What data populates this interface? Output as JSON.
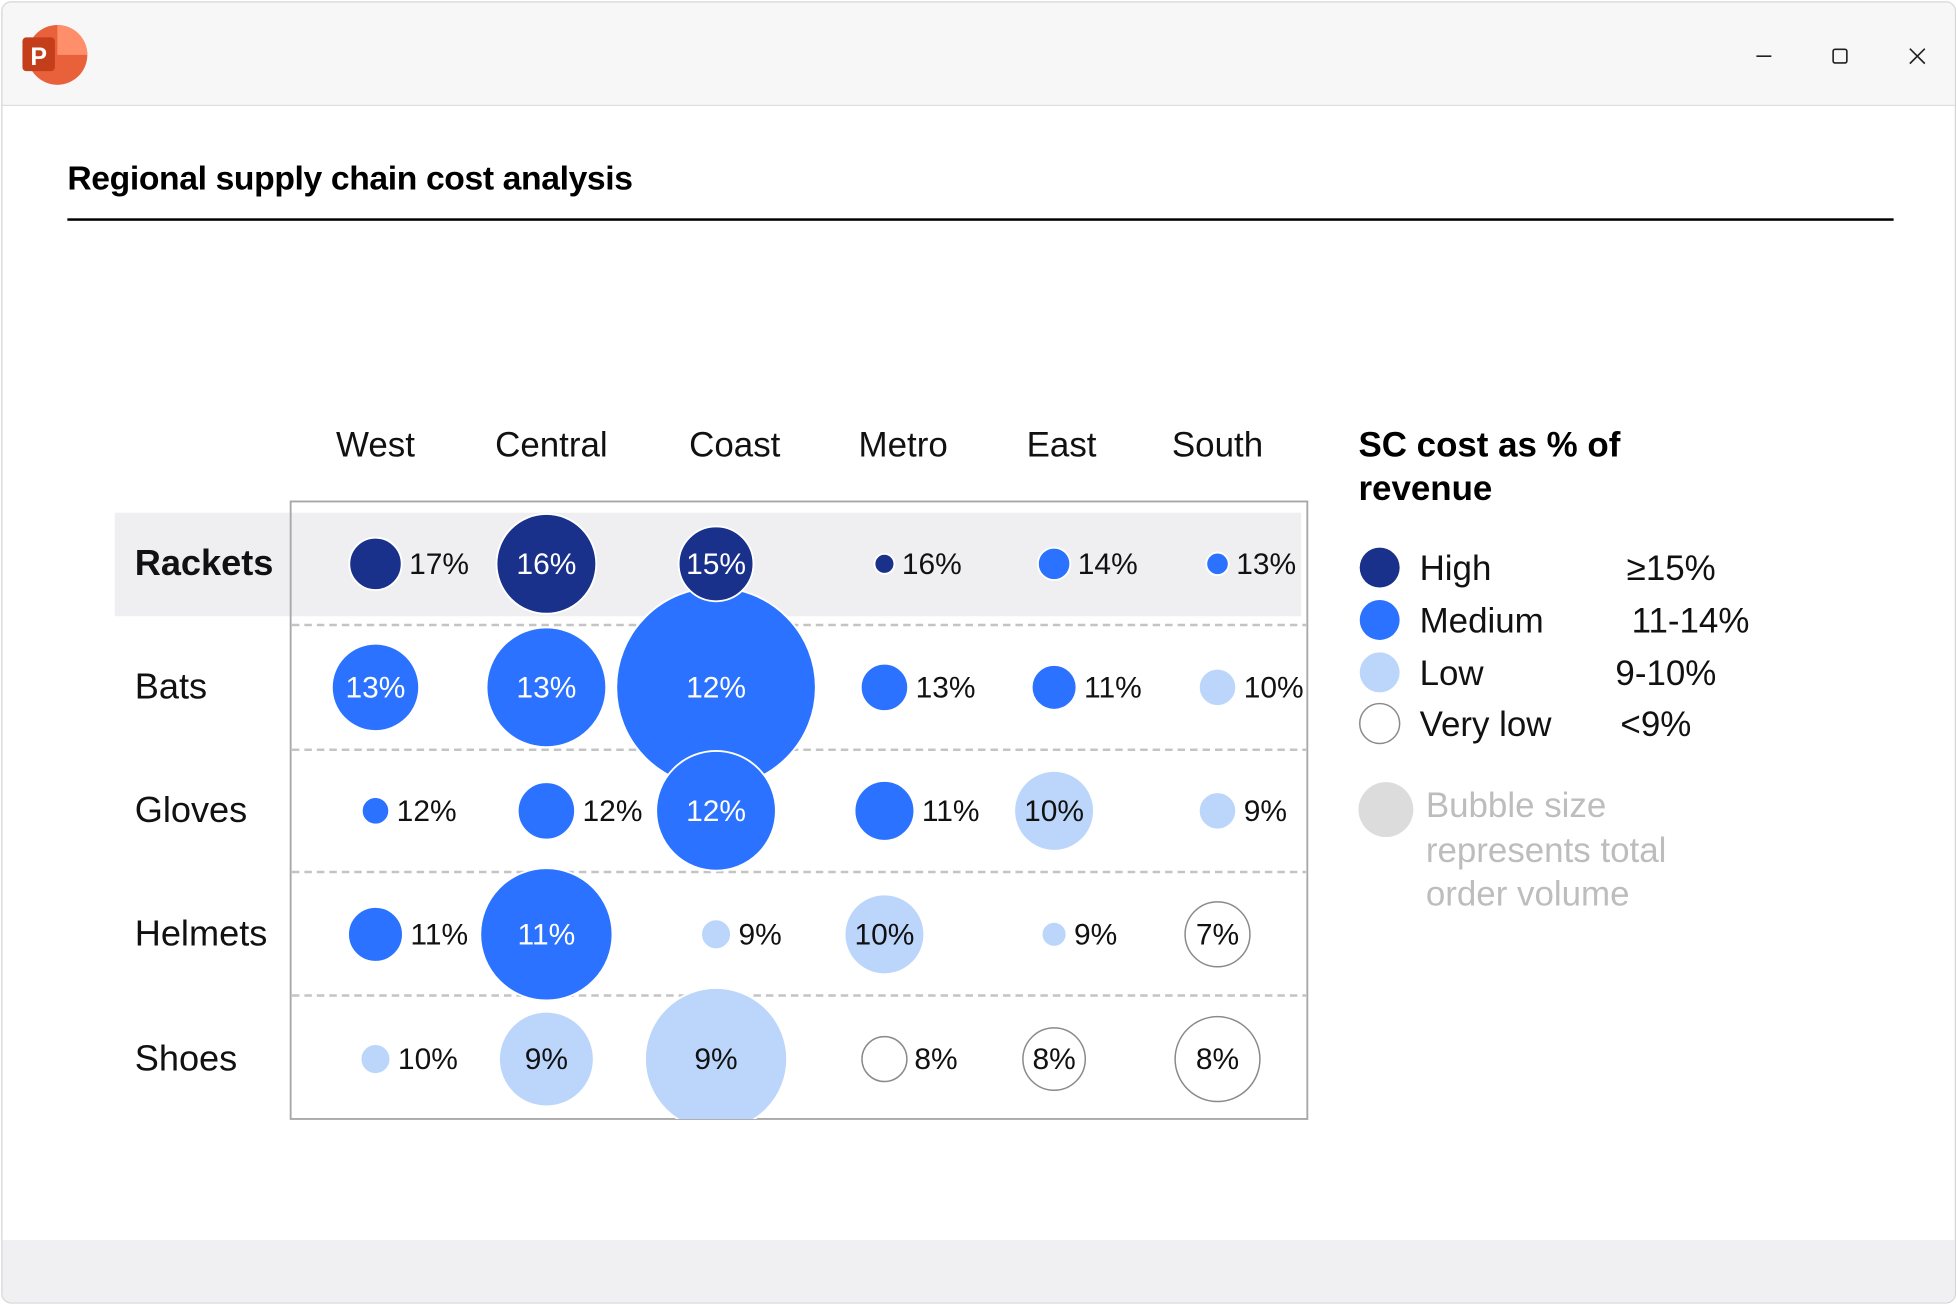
{
  "window": {
    "app_icon": "powerpoint-icon",
    "controls": [
      "minimize-icon",
      "maximize-icon",
      "close-icon"
    ]
  },
  "slide": {
    "title": "Regional supply chain cost analysis"
  },
  "colors": {
    "High": "#1a318c",
    "Medium": "#2a72ff",
    "Low": "#bcd6fb",
    "Very low": "#ffffff",
    "note": "#dcdcdc"
  },
  "chart_data": {
    "type": "bubble-matrix",
    "title": "Regional supply chain cost analysis",
    "columns": [
      "West",
      "Central",
      "Coast",
      "Metro",
      "East",
      "South"
    ],
    "rows": [
      "Rackets",
      "Bats",
      "Gloves",
      "Helmets",
      "Shoes"
    ],
    "highlighted_row": "Rackets",
    "size_meaning": "Bubble size represents total order volume",
    "cells": [
      [
        {
          "v": "17%",
          "cat": "High",
          "size": 21
        },
        {
          "v": "16%",
          "cat": "High",
          "size": 40
        },
        {
          "v": "15%",
          "cat": "High",
          "size": 30
        },
        {
          "v": "16%",
          "cat": "High",
          "size": 8
        },
        {
          "v": "14%",
          "cat": "Medium",
          "size": 13
        },
        {
          "v": "13%",
          "cat": "Medium",
          "size": 9
        }
      ],
      [
        {
          "v": "13%",
          "cat": "Medium",
          "size": 35
        },
        {
          "v": "13%",
          "cat": "Medium",
          "size": 48
        },
        {
          "v": "12%",
          "cat": "Medium",
          "size": 80
        },
        {
          "v": "13%",
          "cat": "Medium",
          "size": 19
        },
        {
          "v": "11%",
          "cat": "Medium",
          "size": 18
        },
        {
          "v": "10%",
          "cat": "Low",
          "size": 15
        }
      ],
      [
        {
          "v": "12%",
          "cat": "Medium",
          "size": 11
        },
        {
          "v": "12%",
          "cat": "Medium",
          "size": 23
        },
        {
          "v": "12%",
          "cat": "Medium",
          "size": 48
        },
        {
          "v": "11%",
          "cat": "Medium",
          "size": 24
        },
        {
          "v": "10%",
          "cat": "Low",
          "size": 32
        },
        {
          "v": "9%",
          "cat": "Low",
          "size": 15
        }
      ],
      [
        {
          "v": "11%",
          "cat": "Medium",
          "size": 22
        },
        {
          "v": "11%",
          "cat": "Medium",
          "size": 53
        },
        {
          "v": "9%",
          "cat": "Low",
          "size": 12
        },
        {
          "v": "10%",
          "cat": "Low",
          "size": 32
        },
        {
          "v": "9%",
          "cat": "Low",
          "size": 10
        },
        {
          "v": "7%",
          "cat": "Very low",
          "size": 26
        }
      ],
      [
        {
          "v": "10%",
          "cat": "Low",
          "size": 12
        },
        {
          "v": "9%",
          "cat": "Low",
          "size": 38
        },
        {
          "v": "9%",
          "cat": "Low",
          "size": 57
        },
        {
          "v": "8%",
          "cat": "Very low",
          "size": 18
        },
        {
          "v": "8%",
          "cat": "Very low",
          "size": 25
        },
        {
          "v": "8%",
          "cat": "Very low",
          "size": 34
        }
      ]
    ],
    "legend": {
      "title_line1": "SC cost as % of",
      "title_line2": "revenue",
      "items": [
        {
          "label": "High",
          "range": "≥15%"
        },
        {
          "label": "Medium",
          "range": "11-14%"
        },
        {
          "label": "Low",
          "range": "9-10%"
        },
        {
          "label": "Very low",
          "range": "<9%"
        }
      ],
      "note_lines": [
        "Bubble size",
        "represents total",
        "order volume"
      ]
    }
  }
}
